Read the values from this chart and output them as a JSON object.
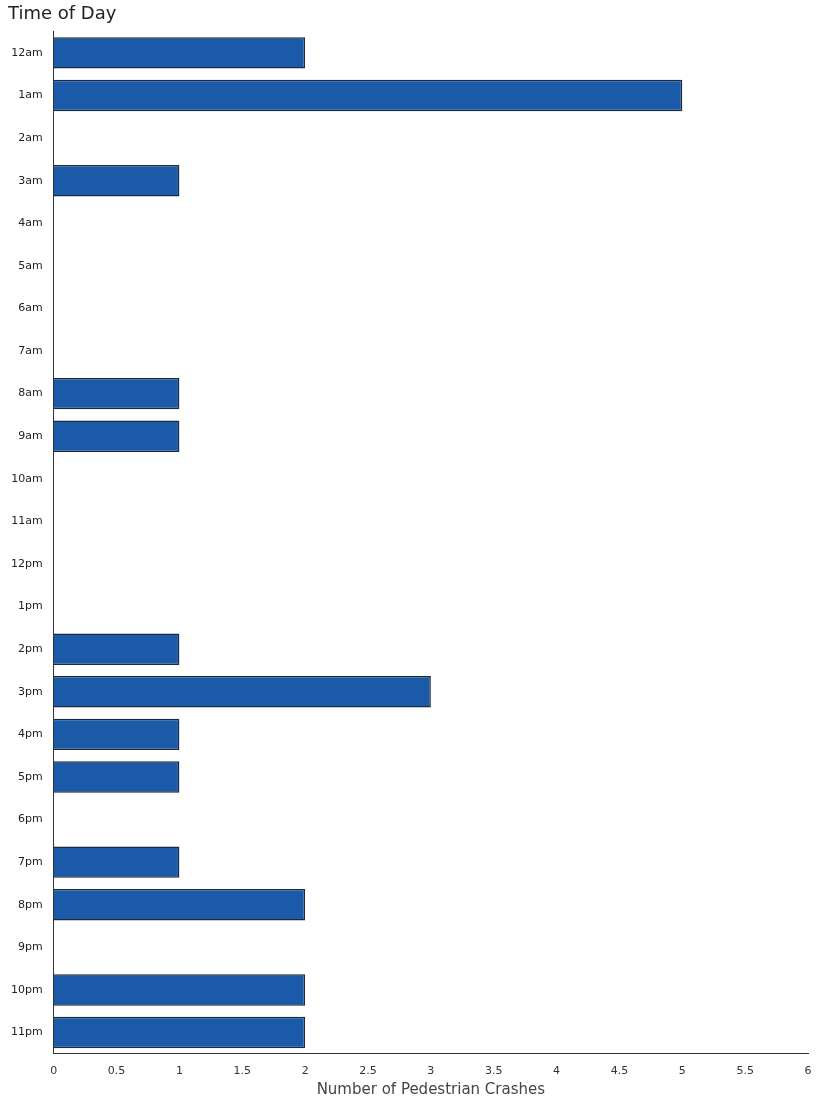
{
  "chart_data": {
    "type": "bar",
    "orientation": "horizontal",
    "title": "Time of Day",
    "xlabel": "Number of Pedestrian Crashes",
    "categories": [
      "12am",
      "1am",
      "2am",
      "3am",
      "4am",
      "5am",
      "6am",
      "7am",
      "8am",
      "9am",
      "10am",
      "11am",
      "12pm",
      "1pm",
      "2pm",
      "3pm",
      "4pm",
      "5pm",
      "6pm",
      "7pm",
      "8pm",
      "9pm",
      "10pm",
      "11pm"
    ],
    "values": [
      2,
      5,
      0,
      1,
      0,
      0,
      0,
      0,
      1,
      1,
      0,
      0,
      0,
      0,
      1,
      3,
      1,
      1,
      0,
      1,
      2,
      0,
      2,
      2
    ],
    "color": "#1b5aa8",
    "xlim": [
      0,
      6
    ],
    "xticks": [
      0,
      0.5,
      1,
      1.5,
      2,
      2.5,
      3,
      3.5,
      4,
      4.5,
      5,
      5.5,
      6
    ],
    "grid": false,
    "legend": false
  }
}
